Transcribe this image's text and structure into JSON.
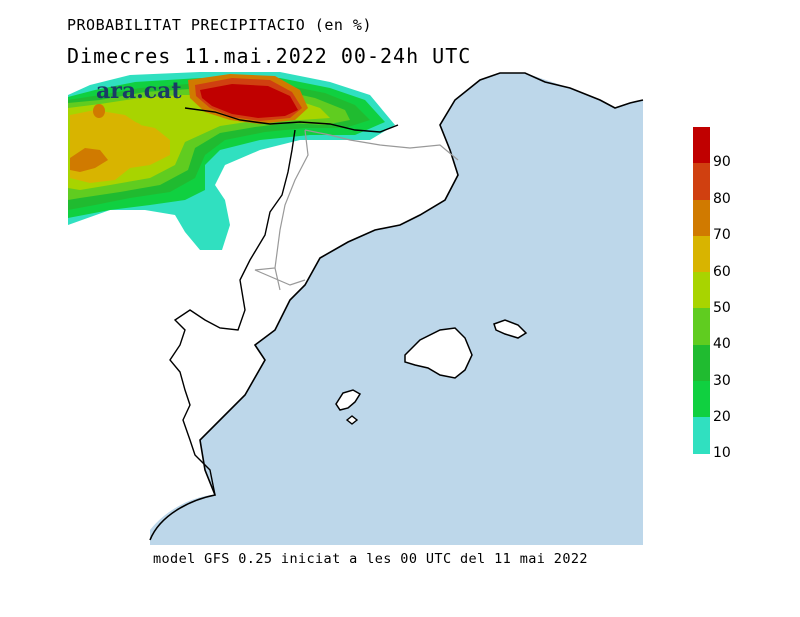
{
  "header": {
    "title": "PROBABILITAT PRECIPITACIO (en %)",
    "subtitle": "Dimecres  11.mai.2022 00-24h UTC"
  },
  "footer": {
    "model_note": "model GFS 0.25 iniciat a les 00 UTC del 11 mai 2022"
  },
  "logo": {
    "text": "ara.cat"
  },
  "colorbar": {
    "labels": [
      "90",
      "80",
      "70",
      "60",
      "50",
      "40",
      "30",
      "20",
      "10"
    ],
    "colors": [
      "#c00000",
      "#d04010",
      "#d07a00",
      "#d8b400",
      "#a8d400",
      "#60cc20",
      "#20bb30",
      "#10d040",
      "#30e0c0"
    ]
  },
  "colors": {
    "sea": "#bdd7ea",
    "land": "#ffffff",
    "max_precip": "#c00000",
    "cyan": "#30e0c0"
  }
}
